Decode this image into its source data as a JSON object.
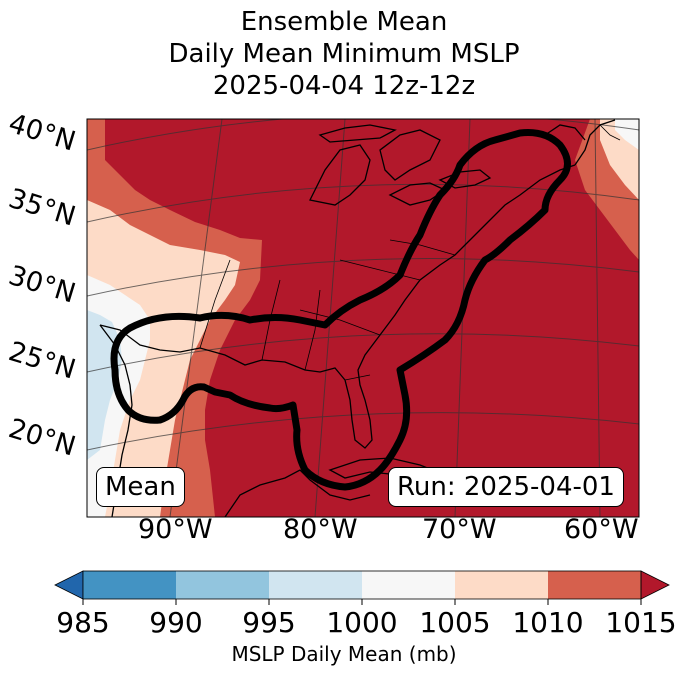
{
  "title": {
    "line1": "Ensemble Mean",
    "line2": "Daily Mean Minimum MSLP",
    "line3": "2025-04-04 12z-12z"
  },
  "map": {
    "latitude_labels": [
      "40°N",
      "35°N",
      "30°N",
      "25°N",
      "20°N"
    ],
    "longitude_labels": [
      "90°W",
      "80°W",
      "70°W",
      "60°W"
    ],
    "left_box": "Mean",
    "right_box": "Run: 2025-04-01",
    "colors": {
      "c985": "#2166ac",
      "c990": "#4393c3",
      "c995": "#92c5de",
      "c1000": "#d1e5f0",
      "c1005": "#f7f7f7",
      "c1010": "#fddbc7",
      "c1015": "#d6604d",
      "over": "#b2182b"
    }
  },
  "colorbar": {
    "ticks": [
      "985",
      "990",
      "995",
      "1000",
      "1005",
      "1010",
      "1015"
    ],
    "label": "MSLP Daily Mean (mb)",
    "bins": [
      {
        "range": "985-990",
        "color": "#4393c3"
      },
      {
        "range": "990-995",
        "color": "#92c5de"
      },
      {
        "range": "995-1000",
        "color": "#d1e5f0"
      },
      {
        "range": "1000-1005",
        "color": "#f7f7f7"
      },
      {
        "range": "1005-1010",
        "color": "#fddbc7"
      },
      {
        "range": "1010-1015",
        "color": "#d6604d"
      }
    ],
    "under_color": "#2166ac",
    "over_color": "#b2182b"
  }
}
